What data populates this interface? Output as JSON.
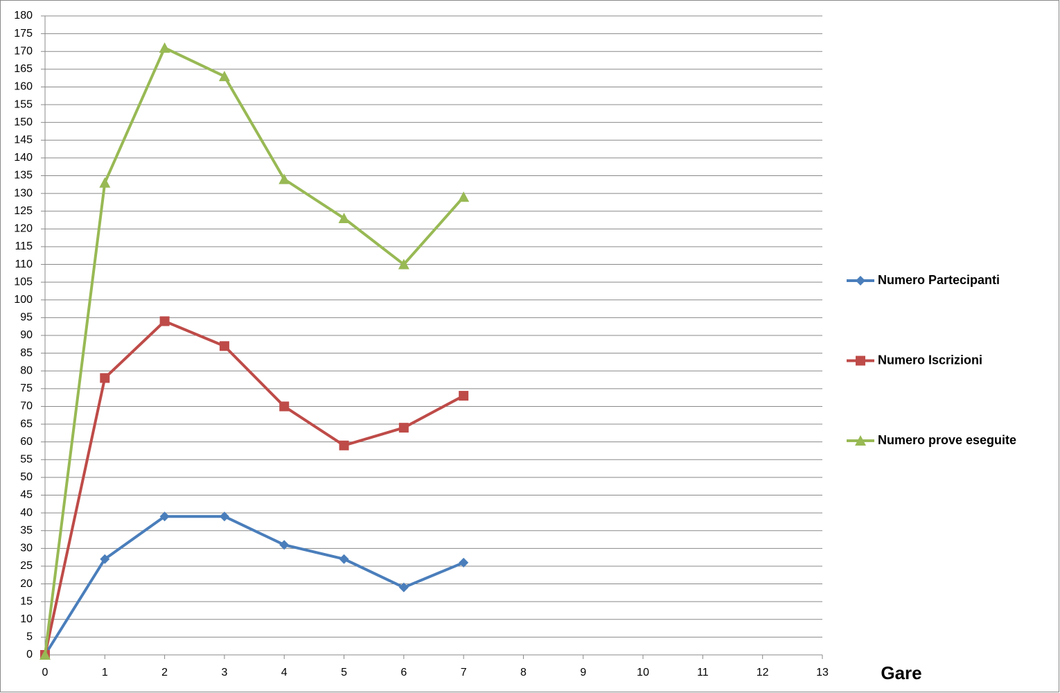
{
  "chart_data": {
    "type": "line",
    "x_label": "Gare",
    "x": [
      0,
      1,
      2,
      3,
      4,
      5,
      6,
      7
    ],
    "series": [
      {
        "name": "Numero Partecipanti",
        "color": "#4a7ebb",
        "marker": "diamond",
        "values": [
          0,
          27,
          39,
          39,
          31,
          27,
          19,
          26
        ]
      },
      {
        "name": "Numero Iscrizioni",
        "color": "#be4b48",
        "marker": "square",
        "values": [
          0,
          78,
          94,
          87,
          70,
          59,
          64,
          73
        ]
      },
      {
        "name": "Numero prove eseguite",
        "color": "#98b954",
        "marker": "triangle",
        "values": [
          0,
          133,
          171,
          163,
          134,
          123,
          110,
          129
        ]
      }
    ],
    "xlim": [
      0,
      13
    ],
    "xticks": [
      0,
      1,
      2,
      3,
      4,
      5,
      6,
      7,
      8,
      9,
      10,
      11,
      12,
      13
    ],
    "ylim": [
      0,
      180
    ],
    "yticks": [
      0,
      5,
      10,
      15,
      20,
      25,
      30,
      35,
      40,
      45,
      50,
      55,
      60,
      65,
      70,
      75,
      80,
      85,
      90,
      95,
      100,
      105,
      110,
      115,
      120,
      125,
      130,
      135,
      140,
      145,
      150,
      155,
      160,
      165,
      170,
      175,
      180
    ],
    "grid": true,
    "legend": "right"
  }
}
